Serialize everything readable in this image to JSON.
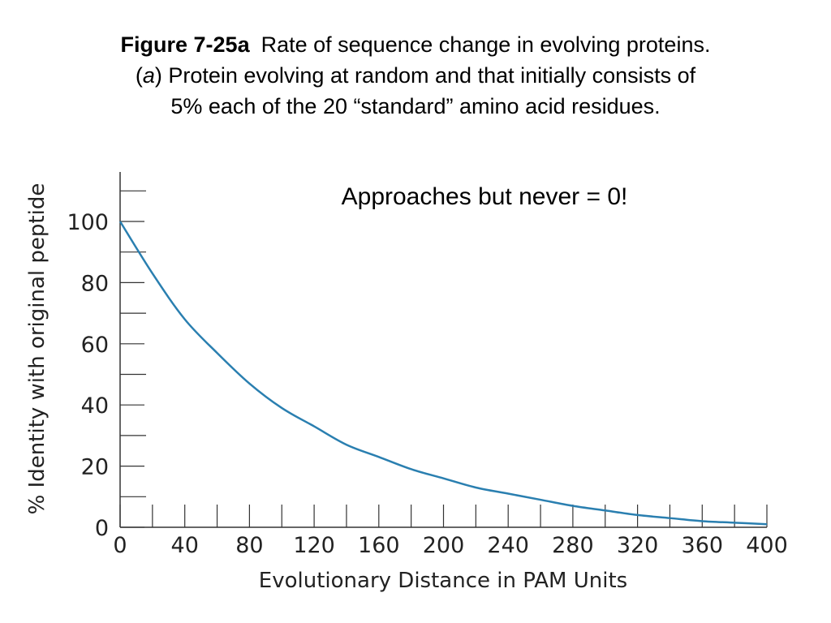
{
  "caption": {
    "label": "Figure 7-25a",
    "line1": "Rate of sequence change in evolving proteins.",
    "line2_open": "(",
    "line2_letter": "a",
    "line2_rest": ") Protein evolving at random and that initially consists of",
    "line3": "5% each of the 20 “standard” amino acid residues."
  },
  "chart_data": {
    "type": "line",
    "title": "",
    "xlabel": "Evolutionary Distance in PAM Units",
    "ylabel": "% Identity with original peptide",
    "xlim": [
      0,
      400
    ],
    "ylim": [
      0,
      115
    ],
    "x_ticks": [
      0,
      40,
      80,
      120,
      160,
      200,
      240,
      280,
      320,
      360,
      400
    ],
    "y_ticks": [
      0,
      20,
      40,
      60,
      80,
      100
    ],
    "grid": false,
    "line_color": "#2a7fb0",
    "series": [
      {
        "x": [
          0,
          20,
          40,
          60,
          80,
          100,
          120,
          140,
          160,
          180,
          200,
          220,
          240,
          260,
          280,
          300,
          320,
          340,
          360,
          380,
          400
        ],
        "values": [
          100,
          83,
          68,
          57,
          47,
          39,
          33,
          27,
          23,
          19,
          16,
          13,
          11,
          9,
          7,
          5.5,
          4,
          3,
          2,
          1.5,
          1
        ]
      }
    ],
    "annotations": [
      {
        "text": "Approaches but never = 0!"
      }
    ]
  }
}
